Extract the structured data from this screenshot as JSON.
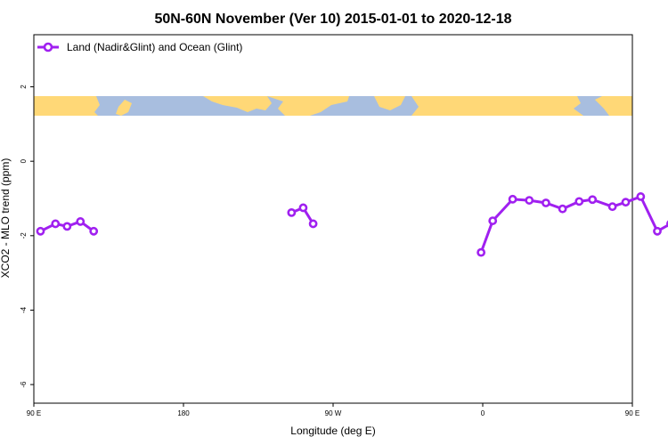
{
  "chart_data": {
    "type": "line",
    "title": "50N-60N November (Ver 10)   2015-01-01 to 2020-12-18",
    "xlabel": "Longitude (deg E)",
    "ylabel": "XCO2 - MLO trend (ppm)",
    "xlim": [
      90,
      450
    ],
    "ylim": [
      -6.5,
      3.4
    ],
    "x_ticks": [
      {
        "value": 90,
        "label": "90 E"
      },
      {
        "value": 180,
        "label": "180"
      },
      {
        "value": 270,
        "label": "90 W"
      },
      {
        "value": 360,
        "label": "0"
      },
      {
        "value": 450,
        "label": "90 E"
      },
      {
        "value": 540,
        "label": "180"
      }
    ],
    "y_ticks": [
      {
        "value": 2,
        "label": "2"
      },
      {
        "value": 0,
        "label": "0"
      },
      {
        "value": -2,
        "label": "-2"
      },
      {
        "value": -4,
        "label": "-4"
      },
      {
        "value": -6,
        "label": "-6"
      }
    ],
    "legend": {
      "position": "top-left"
    },
    "map_strip": {
      "ocean_color": "#a8bedf",
      "land_color": "#ffd877"
    },
    "series": [
      {
        "name": "Land (Nadir&Glint) and Ocean (Glint)",
        "color": "#a020f0",
        "segments": [
          {
            "x": [
              94,
              103,
              110,
              118,
              126
            ],
            "y": [
              -1.88,
              -1.68,
              -1.75,
              -1.62,
              -1.88
            ]
          },
          {
            "x": [
              245,
              252,
              258
            ],
            "y": [
              -1.38,
              -1.25,
              -1.68
            ]
          },
          {
            "x": [
              359,
              366,
              378,
              388,
              398,
              408,
              418,
              426,
              438,
              446,
              455,
              465,
              473,
              482
            ],
            "y": [
              -2.45,
              -1.6,
              -1.02,
              -1.05,
              -1.12,
              -1.28,
              -1.08,
              -1.03,
              -1.22,
              -1.1,
              -0.95,
              -1.88,
              -1.68,
              -1.75
            ]
          }
        ]
      }
    ]
  }
}
